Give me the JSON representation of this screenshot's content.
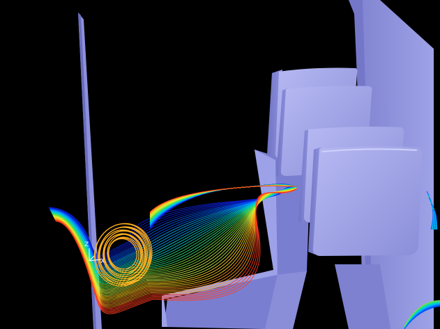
{
  "viewport": {
    "background": "#000000",
    "solid_color": "#8c90dc",
    "solid_light_color": "#a9acec",
    "solid_dark_color": "#6a6dbd"
  },
  "triad": {
    "z_label": "Z",
    "x_label": "X",
    "color": "#ffffff"
  },
  "streamlines": {
    "colors": [
      "#0a1ec8",
      "#0057ff",
      "#00a0ff",
      "#00d2d2",
      "#2ee07a",
      "#7fe03a",
      "#c8f040",
      "#ffd21e",
      "#ff9a1e",
      "#ff3c1e"
    ],
    "vortex_color": "#ffb020"
  }
}
